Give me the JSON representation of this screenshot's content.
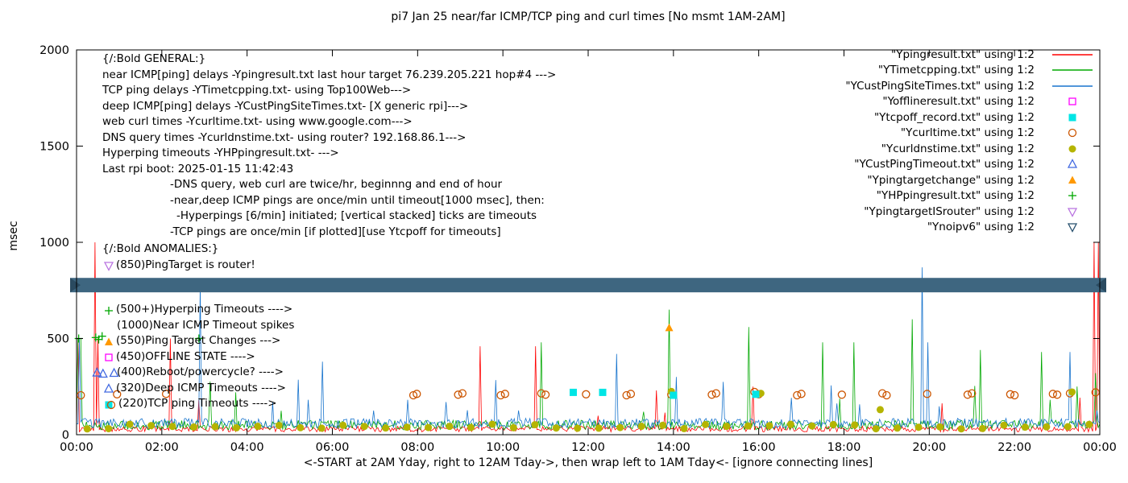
{
  "title": "pi7 Jan 25  near/far ICMP/TCP ping and curl times [No msmt 1AM-2AM]",
  "axes": {
    "ylabel": "msec",
    "xlabel": "<-START at 2AM Yday, right to 12AM Tday->, then wrap left to 1AM Tday<- [ignore connecting lines]",
    "ylim": [
      0,
      2000
    ],
    "xlim": [
      0,
      24
    ],
    "yticks": [
      0,
      500,
      1000,
      1500,
      2000
    ],
    "xtick_labels": [
      "00:00",
      "02:00",
      "04:00",
      "06:00",
      "08:00",
      "10:00",
      "12:00",
      "14:00",
      "16:00",
      "18:00",
      "20:00",
      "22:00",
      "00:00"
    ]
  },
  "general": {
    "heading": "{/:Bold GENERAL:}",
    "lines": [
      {
        "text": "near ICMP[ping] delays -Ypingresult.txt last hour target 76.239.205.221 hop#4 --->",
        "indent": 0
      },
      {
        "text": "TCP ping delays -YTimetcpping.txt- using Top100Web--->",
        "indent": 0
      },
      {
        "text": "deep ICMP[ping] delays -YCustPingSiteTimes.txt- [X generic rpi]--->",
        "indent": 0
      },
      {
        "text": "web curl times -Ycurltime.txt- using www.google.com--->",
        "indent": 0
      },
      {
        "text": "DNS query times -Ycurldnstime.txt- using router? 192.168.86.1--->",
        "indent": 0
      },
      {
        "text": "Hyperping timeouts -YHPpingresult.txt- --->",
        "indent": 0
      },
      {
        "text": "Last rpi boot: 2025-01-15 11:42:43",
        "indent": 0
      },
      {
        "text": "-DNS query, web curl are twice/hr, beginnng and end of hour",
        "indent": 1
      },
      {
        "text": "-near,deep ICMP pings are once/min until timeout[1000 msec], then:",
        "indent": 1
      },
      {
        "text": "-Hyperpings [6/min] initiated; [vertical stacked] ticks are timeouts",
        "indent": 2
      },
      {
        "text": "-TCP pings are once/min [if plotted][use Ytcpoff for timeouts]",
        "indent": 1
      }
    ]
  },
  "anomalies": {
    "heading": "{/:Bold ANOMALIES:}",
    "items": [
      {
        "glyphs": [
          "triangle-down-open:#b973e0"
        ],
        "text": "(850)PingTarget is router!",
        "gap_before": false,
        "indent": false
      },
      {
        "glyphs": [
          "plus:#00a800"
        ],
        "text": "(500+)Hyperping Timeouts ---->",
        "gap_before": true,
        "indent": false
      },
      {
        "glyphs": [],
        "text": "(1000)Near ICMP Timeout spikes",
        "gap_before": false,
        "indent": true
      },
      {
        "glyphs": [
          "triangle-up-filled:#ff9900"
        ],
        "text": "(550)Ping Target Changes --->",
        "gap_before": false,
        "indent": false
      },
      {
        "glyphs": [
          "square-open:#ff00ff"
        ],
        "text": "(450)OFFLINE STATE ---->",
        "gap_before": false,
        "indent": false
      },
      {
        "glyphs": [],
        "text": "(400)Reboot/powercycle? ---->",
        "gap_before": false,
        "indent": true
      },
      {
        "glyphs": [
          "triangle-up-open:#4169e1"
        ],
        "text": "(320)Deep ICMP Timeouts ---->",
        "gap_before": false,
        "indent": false
      },
      {
        "glyphs": [
          "square-filled:#00e5e5",
          "circle-open:#cc5500"
        ],
        "text": "(220)TCP ping Timeouts ---->",
        "gap_before": false,
        "indent": false
      }
    ]
  },
  "legend": {
    "entries": [
      {
        "label": "\"Ypingresult.txt\" using 1:2",
        "marker": "line",
        "color": "#ff0000"
      },
      {
        "label": "\"YTimetcpping.txt\" using 1:2",
        "marker": "line",
        "color": "#00a800"
      },
      {
        "label": "\"YCustPingSiteTimes.txt\" using 1:2",
        "marker": "line",
        "color": "#1874cd"
      },
      {
        "label": "\"Yofflineresult.txt\" using 1:2",
        "marker": "square-open",
        "color": "#ff00ff"
      },
      {
        "label": "\"Ytcpoff_record.txt\" using 1:2",
        "marker": "square-filled",
        "color": "#00e5e5"
      },
      {
        "label": "\"Ycurltime.txt\" using 1:2",
        "marker": "circle-open",
        "color": "#cc5500"
      },
      {
        "label": "\"Ycurldnstime.txt\" using 1:2",
        "marker": "circle-filled",
        "color": "#b5b400"
      },
      {
        "label": "\"YCustPingTimeout.txt\" using 1:2",
        "marker": "triangle-up-open",
        "color": "#4169e1"
      },
      {
        "label": "\"Ypingtargetchange\" using 1:2",
        "marker": "triangle-up-filled",
        "color": "#ff9900"
      },
      {
        "label": "\"YHPpingresult.txt\" using 1:2",
        "marker": "plus",
        "color": "#00a800"
      },
      {
        "label": "\"YpingtargetISrouter\" using 1:2",
        "marker": "triangle-down-open",
        "color": "#b973e0"
      },
      {
        "label": "\"Ynoipv6\" using 1:2",
        "marker": "triangle-down-open",
        "color": "#27506e"
      }
    ]
  },
  "chart_data": {
    "type": "line",
    "title": "pi7 Jan 25  near/far ICMP/TCP ping and curl times [No msmt 1AM-2AM]",
    "xlabel": "<-START at 2AM Yday, right to 12AM Tday->, then wrap left to 1AM Tday<- [ignore connecting lines]",
    "ylabel": "msec",
    "xlim": [
      0,
      24
    ],
    "ylim": [
      0,
      2000
    ],
    "x_unit": "hour-of-day",
    "lines": [
      {
        "name": "Ypingresult.txt",
        "color": "#ff0000",
        "baseline": [
          15,
          45
        ],
        "noise_spike_prob": 0.004,
        "noise_spike_range": [
          80,
          200
        ],
        "spikes": [
          [
            0.02,
            500
          ],
          [
            0.42,
            1000
          ],
          [
            0.5,
            500
          ],
          [
            2.2,
            500
          ],
          [
            2.85,
            180
          ],
          [
            9.47,
            460
          ],
          [
            10.77,
            460
          ],
          [
            13.6,
            230
          ],
          [
            15.85,
            250
          ],
          [
            23.88,
            1000
          ],
          [
            23.97,
            1000
          ]
        ]
      },
      {
        "name": "YTimetcpping.txt",
        "color": "#00a800",
        "baseline": [
          25,
          75
        ],
        "noise_spike_prob": 0.02,
        "noise_spike_range": [
          100,
          280
        ],
        "spikes": [
          [
            0.03,
            500
          ],
          [
            0.066,
            500
          ],
          [
            0.1,
            500
          ],
          [
            10.9,
            480
          ],
          [
            13.89,
            650
          ],
          [
            15.78,
            560
          ],
          [
            17.5,
            480
          ],
          [
            18.24,
            480
          ],
          [
            19.6,
            600
          ],
          [
            21.2,
            440
          ],
          [
            22.62,
            430
          ],
          [
            23.9,
            320
          ]
        ]
      },
      {
        "name": "YCustPingSiteTimes.txt",
        "color": "#1874cd",
        "baseline": [
          35,
          85
        ],
        "noise_spike_prob": 0.02,
        "noise_spike_range": [
          110,
          300
        ],
        "spikes": [
          [
            0.05,
            500
          ],
          [
            2.89,
            780
          ],
          [
            5.76,
            380
          ],
          [
            12.66,
            420
          ],
          [
            14.05,
            300
          ],
          [
            19.84,
            870
          ],
          [
            19.98,
            480
          ],
          [
            23.3,
            430
          ]
        ]
      }
    ],
    "points": [
      {
        "name": "Ycurltime.txt",
        "marker": "circle-open",
        "color": "#cc5500",
        "data": [
          [
            0.1,
            205
          ],
          [
            0.95,
            210
          ],
          [
            2.1,
            212
          ],
          [
            7.9,
            205
          ],
          [
            7.98,
            212
          ],
          [
            8.95,
            208
          ],
          [
            9.05,
            215
          ],
          [
            9.95,
            205
          ],
          [
            10.05,
            212
          ],
          [
            10.9,
            215
          ],
          [
            11.0,
            208
          ],
          [
            11.95,
            210
          ],
          [
            12.9,
            205
          ],
          [
            13.0,
            212
          ],
          [
            13.95,
            208
          ],
          [
            14.9,
            208
          ],
          [
            15.0,
            215
          ],
          [
            15.9,
            222
          ],
          [
            16.0,
            210
          ],
          [
            16.9,
            205
          ],
          [
            17.0,
            212
          ],
          [
            17.95,
            208
          ],
          [
            18.9,
            215
          ],
          [
            19.0,
            205
          ],
          [
            19.95,
            212
          ],
          [
            20.9,
            208
          ],
          [
            21.0,
            215
          ],
          [
            21.9,
            210
          ],
          [
            22.0,
            205
          ],
          [
            22.9,
            212
          ],
          [
            23.0,
            208
          ],
          [
            23.3,
            215
          ],
          [
            23.9,
            220
          ]
        ]
      },
      {
        "name": "Ycurldnstime.txt",
        "marker": "circle-filled",
        "color": "#b5b400",
        "pattern": {
          "start": 0.25,
          "step": 0.5,
          "end": 23.75,
          "y_min": 30,
          "y_max": 55
        },
        "data": [
          [
            13.95,
            225
          ],
          [
            16.05,
            215
          ],
          [
            18.85,
            130
          ],
          [
            23.35,
            222
          ]
        ]
      },
      {
        "name": "Ytcpoff_record.txt",
        "marker": "square-filled",
        "color": "#00e5e5",
        "data": [
          [
            11.65,
            220
          ],
          [
            12.34,
            220
          ],
          [
            14.0,
            205
          ],
          [
            15.93,
            210
          ]
        ]
      },
      {
        "name": "YCustPingTimeout.txt",
        "marker": "triangle-up-open",
        "color": "#4169e1",
        "data": [
          [
            0.48,
            322
          ],
          [
            0.62,
            316
          ],
          [
            0.88,
            320
          ]
        ]
      },
      {
        "name": "Ypingtargetchange",
        "marker": "triangle-up-filled",
        "color": "#ff9900",
        "data": [
          [
            13.9,
            555
          ]
        ]
      },
      {
        "name": "YHPpingresult.txt",
        "marker": "plus",
        "color": "#00a800",
        "data": [
          [
            0.05,
            500
          ],
          [
            0.45,
            505
          ],
          [
            0.52,
            495
          ],
          [
            0.6,
            512
          ],
          [
            2.87,
            500
          ]
        ]
      }
    ],
    "band": {
      "name": "Ynoipv6",
      "y_range": [
        740,
        815
      ],
      "color": "#3e6680",
      "cap_color": "#2a4a60"
    }
  }
}
